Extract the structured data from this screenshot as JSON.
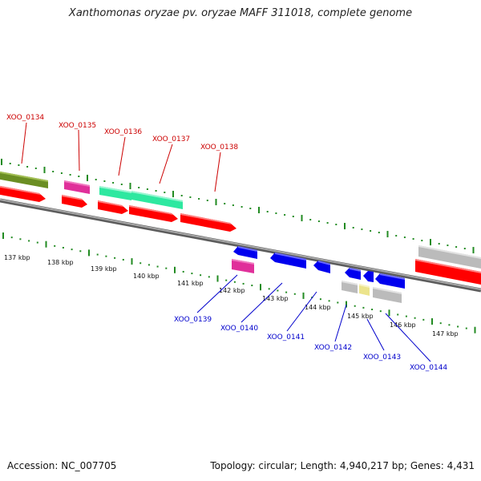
{
  "title": "Xanthomonas oryzae pv. oryzae MAFF 311018, complete genome",
  "footer": {
    "accession_label": "Accession:",
    "accession": "NC_007705",
    "topology_text": "Topology: circular; Length: 4,940,217 bp; Genes: 4,431"
  },
  "colors": {
    "forward_label": "#cc0000",
    "reverse_label": "#0000cc",
    "tick": "#228b22",
    "backbone": "#808080",
    "red": "#ff0000",
    "pink": "#e0309a",
    "mint": "#2ee8a0",
    "olive": "#6b8e23",
    "blue": "#0000ee",
    "gray": "#bbbbbb",
    "khaki": "#ece48c"
  },
  "scale": {
    "unit": "kbp",
    "tick_labels": [
      "137 kbp",
      "138 kbp",
      "139 kbp",
      "140 kbp",
      "141 kbp",
      "142 kbp",
      "143 kbp",
      "144 kbp",
      "145 kbp",
      "146 kbp",
      "147 kbp"
    ]
  },
  "gene_labels": {
    "forward": [
      "XOO_0134",
      "XOO_0135",
      "XOO_0136",
      "XOO_0137",
      "XOO_0138"
    ],
    "reverse": [
      "XOO_0139",
      "XOO_0140",
      "XOO_0141",
      "XOO_0142",
      "XOO_0143",
      "XOO_0144"
    ]
  }
}
